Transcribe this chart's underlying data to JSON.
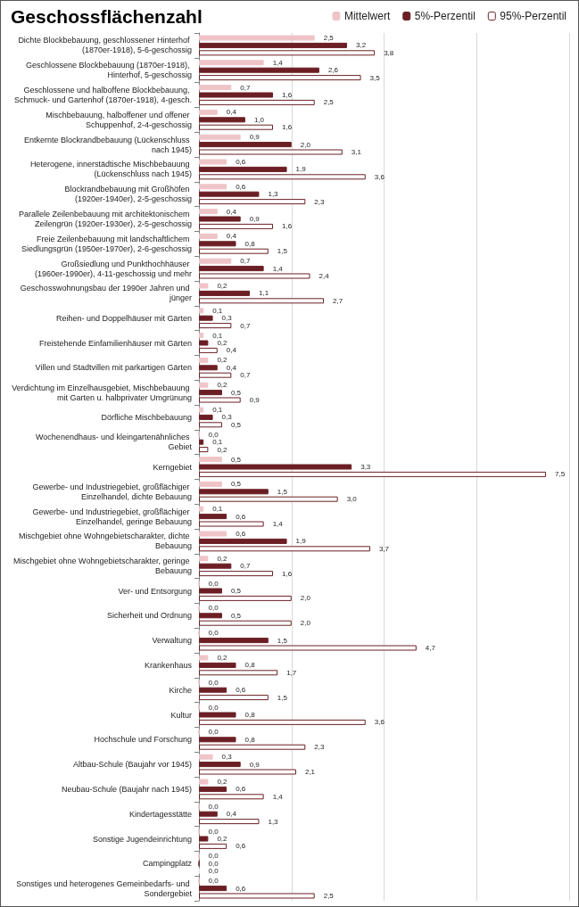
{
  "chart_data": {
    "type": "bar",
    "orientation": "horizontal",
    "title": "Geschossflächenzahl",
    "categories": [
      "Dichte Blockbebauung, geschlossener Hinterhof (1870er-1918), 5-6-geschossig",
      "Geschlossene Blockbebauung (1870er-1918), Hinterhof, 5-geschossig",
      "Geschlossene und halboffene Blockbebauung, Schmuck- und Gartenhof (1870er-1918), 4-gesch.",
      "Mischbebauung, halboffener und offener Schuppenhof, 2-4-geschossig",
      "Entkernte Blockrandbebauung (Lückenschluss nach 1945)",
      "Heterogene, innerstädtische Mischbebauung (Lückenschluss nach 1945)",
      "Blockrandbebauung mit Großhöfen (1920er-1940er), 2-5-geschossig",
      "Parallele Zeilenbebauung mit architektonischem Zeilengrün (1920er-1930er), 2-5-geschossig",
      "Freie Zeilenbebauung mit landschaftlichem Siedlungsgrün (1950er-1970er), 2-6-geschossig",
      "Großsiedlung und Punkthochhäuser (1960er-1990er), 4-11-geschossig und mehr",
      "Geschosswohnungsbau der 1990er Jahren und jünger",
      "Reihen- und Doppelhäuser mit Gärten",
      "Freistehende Einfamilienhäuser mit Gärten",
      "Villen und Stadtvillen mit parkartigen Gärten",
      "Verdichtung im Einzelhausgebiet, Mischbebauung mit Garten u. halbprivater Umgrünung",
      "Dörfliche Mischbebauung",
      "Wochenendhaus- und kleingartenähnliches Gebiet",
      "Kerngebiet",
      "Gewerbe- und Industriegebiet, großflächiger Einzelhandel, dichte Bebauung",
      "Gewerbe- und Industriegebiet, großflächiger Einzelhandel, geringe Bebauung",
      "Mischgebiet ohne Wohngebietscharakter, dichte Bebauung",
      "Mischgebiet ohne Wohngebietscharakter, geringe Bebauung",
      "Ver- und Entsorgung",
      "Sicherheit und Ordnung",
      "Verwaltung",
      "Krankenhaus",
      "Kirche",
      "Kultur",
      "Hochschule und Forschung",
      "Altbau-Schule (Baujahr vor 1945)",
      "Neubau-Schule (Baujahr nach 1945)",
      "Kindertagesstätte",
      "Sonstige Jugendeinrichtung",
      "Campingplatz",
      "Sonstiges und heterogenes Gemeinbedarfs- und Sondergebiet"
    ],
    "series": [
      {
        "name": "Mittelwert",
        "color": "#efc4c8",
        "values": [
          2.5,
          1.4,
          0.7,
          0.4,
          0.9,
          0.6,
          0.6,
          0.4,
          0.4,
          0.7,
          0.2,
          0.1,
          0.1,
          0.2,
          0.2,
          0.1,
          0.0,
          0.5,
          0.5,
          0.1,
          0.6,
          0.2,
          0.0,
          0.0,
          0.0,
          0.2,
          0.0,
          0.0,
          0.0,
          0.3,
          0.2,
          0.0,
          0.0,
          0.0,
          0.0
        ],
        "value_labels": [
          "2,5",
          "1,4",
          "0,7",
          "0,4",
          "0,9",
          "0,6",
          "0,6",
          "0,4",
          "0,4",
          "0,7",
          "0,2",
          "0,1",
          "0,1",
          "0,2",
          "0,2",
          "0,1",
          "0,0",
          "0,5",
          "0,5",
          "0,1",
          "0,6",
          "0,2",
          "0,0",
          "0,0",
          "0,0",
          "0,2",
          "0,0",
          "0,0",
          "0,0",
          "0,3",
          "0,2",
          "0,0",
          "0,0",
          "0,0",
          "0,0"
        ]
      },
      {
        "name": "5%-Perzentil",
        "color": "#6b1f24",
        "values": [
          3.2,
          2.6,
          1.6,
          1.0,
          2.0,
          1.9,
          1.3,
          0.9,
          0.8,
          1.4,
          1.1,
          0.3,
          0.2,
          0.4,
          0.5,
          0.3,
          0.1,
          3.3,
          1.5,
          0.6,
          1.9,
          0.7,
          0.5,
          0.5,
          1.5,
          0.8,
          0.6,
          0.8,
          0.8,
          0.9,
          0.6,
          0.4,
          0.2,
          0.0,
          0.6
        ],
        "value_labels": [
          "3,2",
          "2,6",
          "1,6",
          "1,0",
          "2,0",
          "1,9",
          "1,3",
          "0,9",
          "0,8",
          "1,4",
          "1,1",
          "0,3",
          "0,2",
          "0,4",
          "0,5",
          "0,3",
          "0,1",
          "3,3",
          "1,5",
          "0,6",
          "1,9",
          "0,7",
          "0,5",
          "0,5",
          "1,5",
          "0,8",
          "0,6",
          "0,8",
          "0,8",
          "0,9",
          "0,6",
          "0,4",
          "0,2",
          "0,0",
          "0,6"
        ]
      },
      {
        "name": "95%-Perzentil",
        "color": "#ffffff",
        "values": [
          3.8,
          3.5,
          2.5,
          1.6,
          3.1,
          3.6,
          2.3,
          1.6,
          1.5,
          2.4,
          2.7,
          0.7,
          0.4,
          0.7,
          0.9,
          0.5,
          0.2,
          7.5,
          3.0,
          1.4,
          3.7,
          1.6,
          2.0,
          2.0,
          4.7,
          1.7,
          1.5,
          3.6,
          2.3,
          2.1,
          1.4,
          1.3,
          0.6,
          0.0,
          2.5
        ],
        "value_labels": [
          "3,8",
          "3,5",
          "2,5",
          "1,6",
          "3,1",
          "3,6",
          "2,3",
          "1,6",
          "1,5",
          "2,4",
          "2,7",
          "0,7",
          "0,4",
          "0,7",
          "0,9",
          "0,5",
          "0,2",
          "7,5",
          "3,0",
          "1,4",
          "3,7",
          "1,6",
          "2,0",
          "2,0",
          "4,7",
          "1,7",
          "1,5",
          "3,6",
          "2,3",
          "2,1",
          "1,4",
          "1,3",
          "0,6",
          "0,0",
          "2,5"
        ]
      }
    ],
    "grid": "x",
    "legend": "top right",
    "tick_labels": "y"
  }
}
